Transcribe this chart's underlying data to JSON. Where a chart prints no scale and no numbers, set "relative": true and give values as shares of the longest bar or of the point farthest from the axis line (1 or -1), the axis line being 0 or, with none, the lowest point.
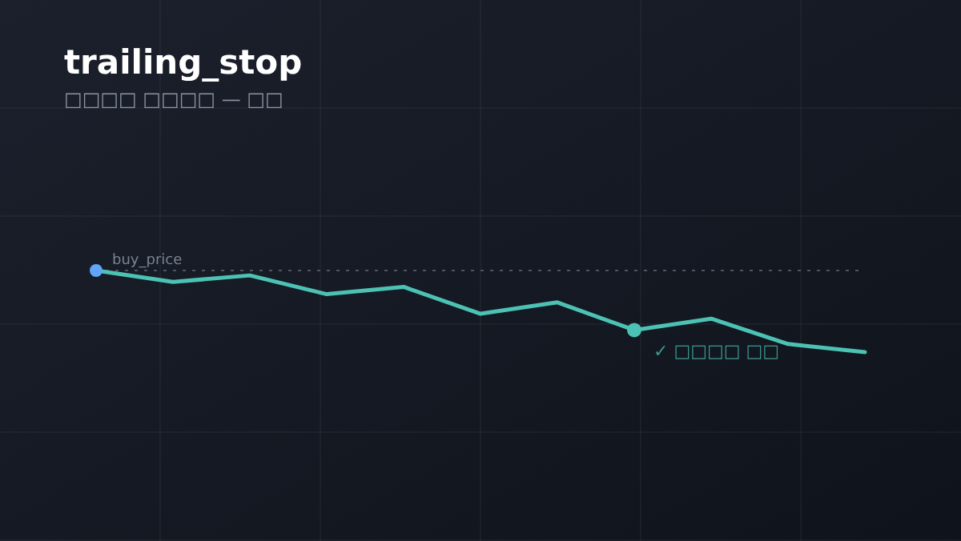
{
  "chart_data": {
    "type": "line",
    "title": "trailing_stop",
    "subtitle": "□□□□ □□□□ — □□",
    "relative": true,
    "categories": [
      null,
      null,
      null,
      null,
      null,
      null,
      null,
      null,
      null,
      null,
      null
    ],
    "series": [
      {
        "values": [
          0,
          -0.14,
          -0.06,
          -0.29,
          -0.2,
          -0.53,
          -0.39,
          -0.73,
          -0.59,
          -0.9,
          -1
        ],
        "color": "#4cc2b4"
      }
    ],
    "ref_lines": [
      {
        "axis": "y",
        "value": 0,
        "label": "buy_price",
        "color": "#4b5563",
        "line_style": "dotted"
      }
    ],
    "annotations": [
      {
        "text": "✓ □□□□ □□",
        "y": -0.73
      }
    ],
    "grid": true
  }
}
